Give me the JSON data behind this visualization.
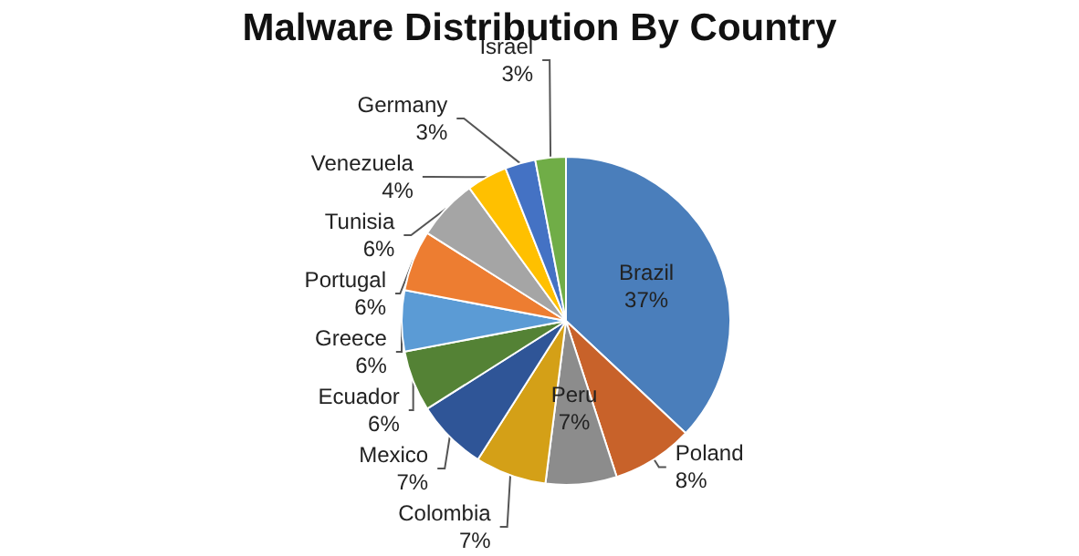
{
  "chart_data": {
    "type": "pie",
    "title": "Malware Distribution By Country",
    "categories": [
      "Brazil",
      "Poland",
      "Peru",
      "Colombia",
      "Mexico",
      "Ecuador",
      "Greece",
      "Portugal",
      "Tunisia",
      "Venezuela",
      "Germany",
      "Israel"
    ],
    "values": [
      37,
      8,
      7,
      7,
      7,
      6,
      6,
      6,
      6,
      4,
      3,
      3
    ],
    "value_labels": [
      "37%",
      "8%",
      "7%",
      "7%",
      "7%",
      "6%",
      "6%",
      "6%",
      "6%",
      "4%",
      "3%",
      "3%"
    ],
    "colors": [
      "#4a7ebb",
      "#c8622a",
      "#8c8c8c",
      "#d4a017",
      "#2f5597",
      "#548235",
      "#5b9bd5",
      "#ed7d31",
      "#a5a5a5",
      "#ffc000",
      "#4472c4",
      "#70ad47"
    ],
    "legend": false
  }
}
